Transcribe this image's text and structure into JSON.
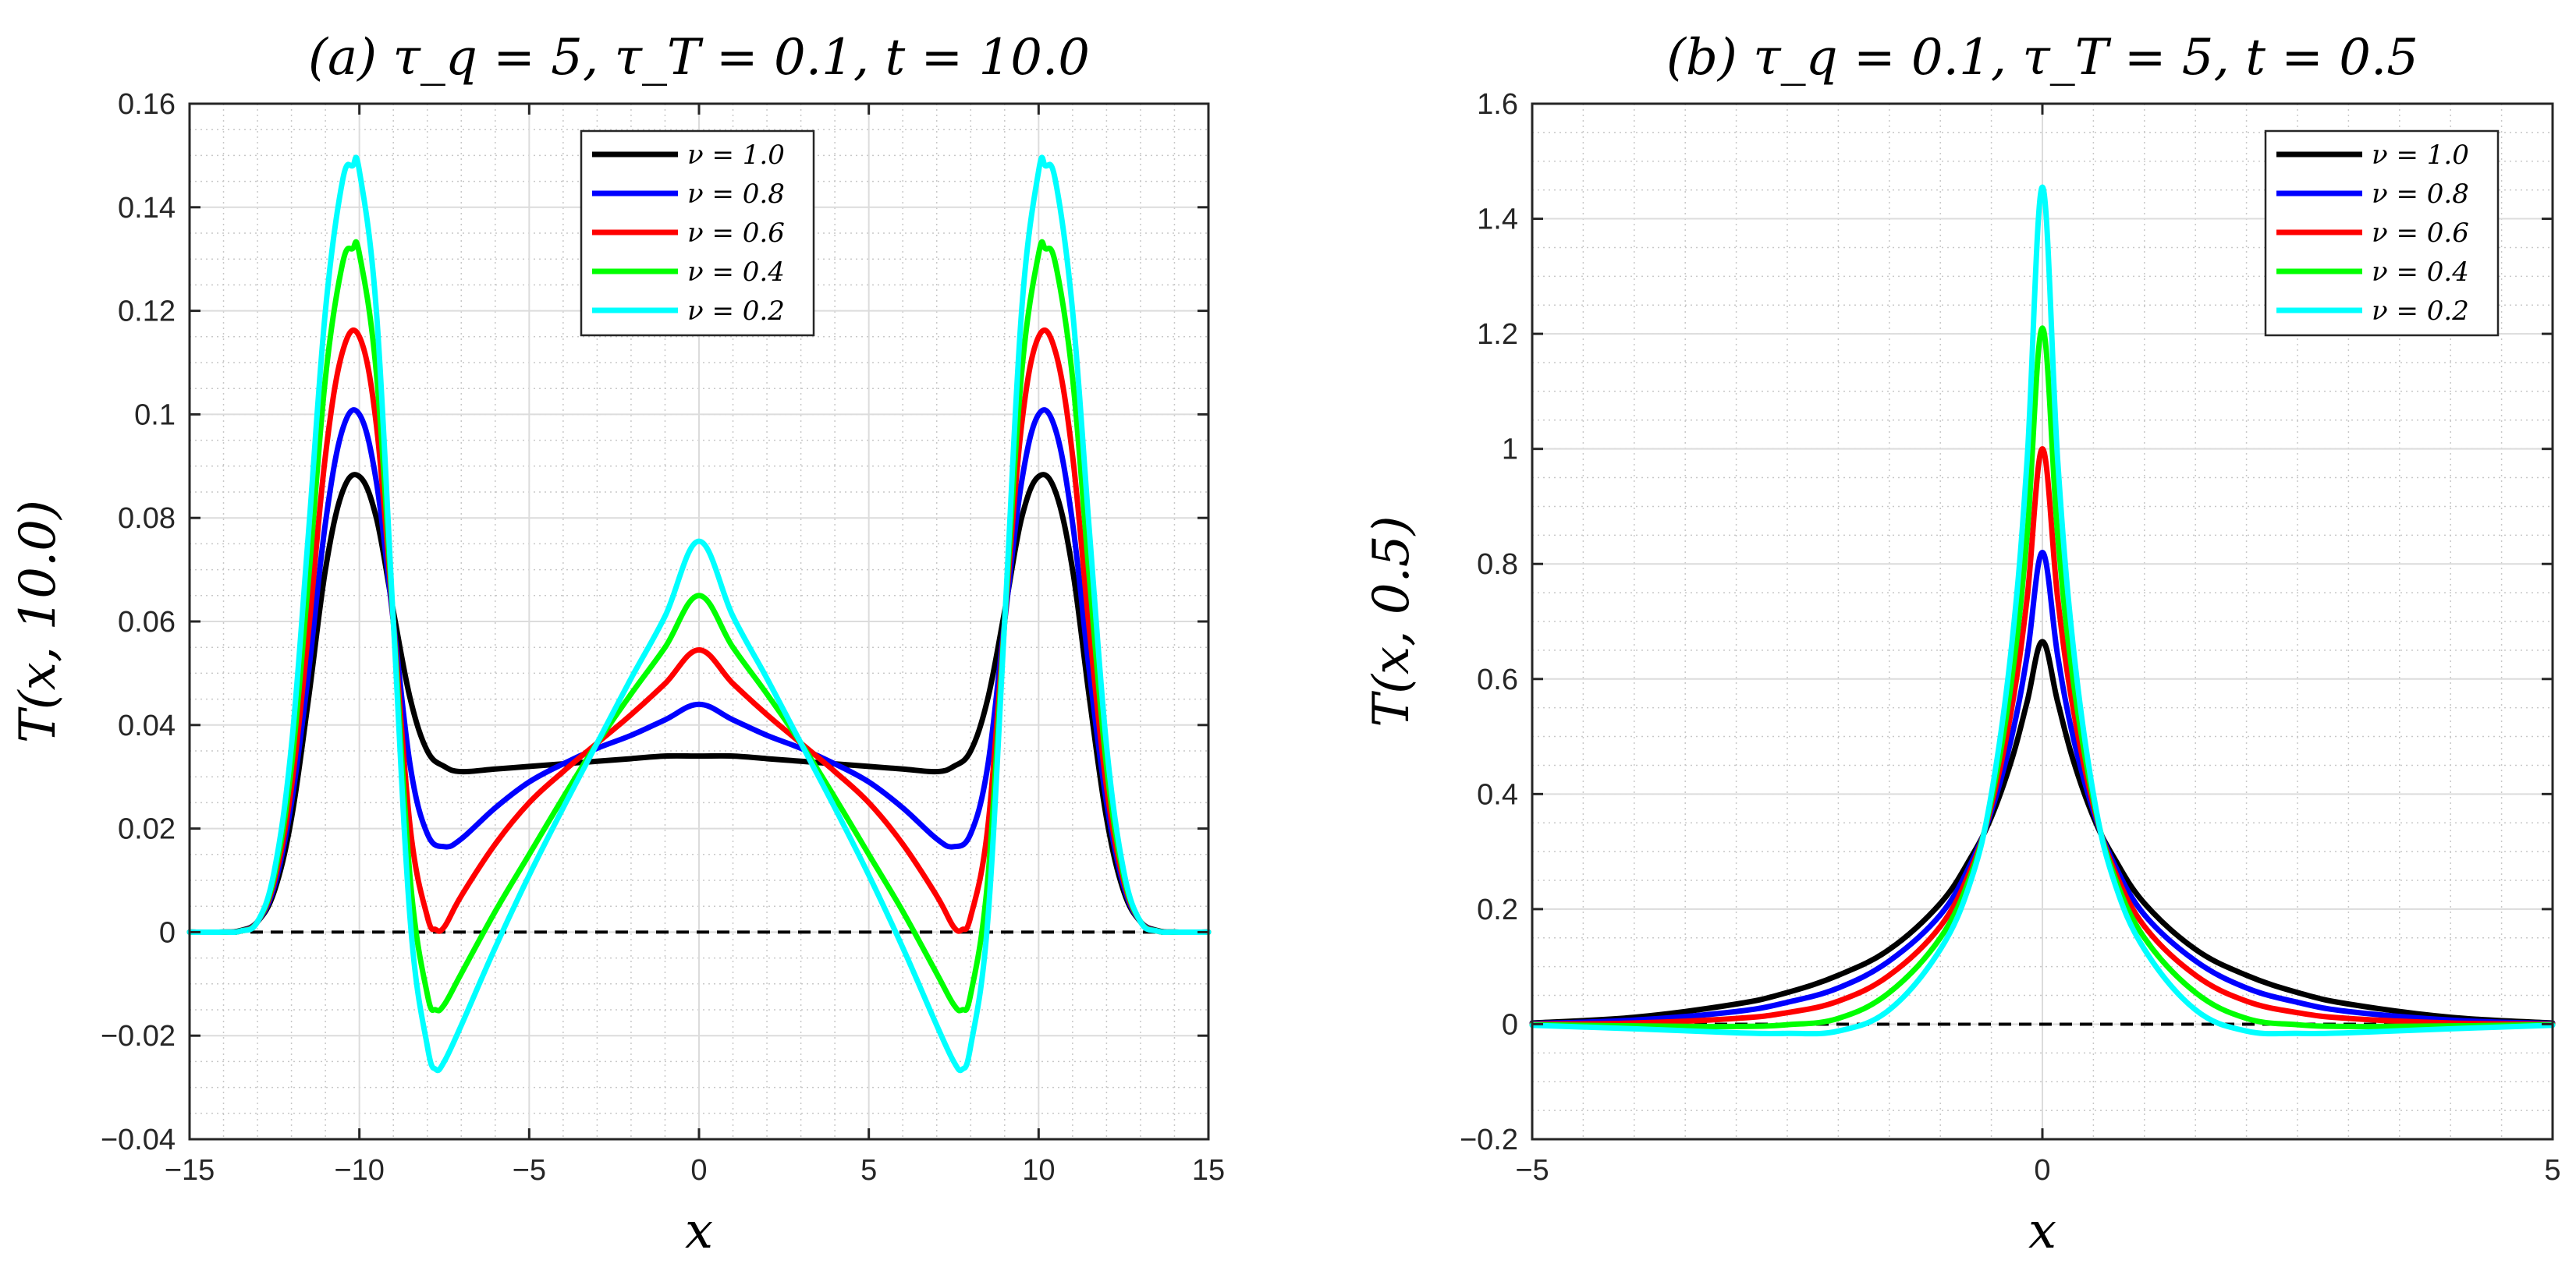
{
  "chart_data": [
    {
      "type": "line",
      "title": "(a) τ_q = 5,  τ_T = 0.1,  t = 10.0",
      "xlabel": "x",
      "ylabel": "T(x, 10.0)",
      "xlim": [
        -15,
        15
      ],
      "ylim": [
        -0.04,
        0.16
      ],
      "xticks": [
        -15,
        -10,
        -5,
        0,
        5,
        10,
        15
      ],
      "xtick_labels": [
        "−15",
        "−10",
        "−5",
        "0",
        "5",
        "10",
        "15"
      ],
      "yticks": [
        -0.04,
        -0.02,
        0,
        0.02,
        0.04,
        0.06,
        0.08,
        0.1,
        0.12,
        0.14,
        0.16
      ],
      "ytick_labels": [
        "−0.04",
        "−0.02",
        "0",
        "0.02",
        "0.04",
        "0.06",
        "0.08",
        "0.1",
        "0.12",
        "0.14",
        "0.16"
      ],
      "grid": true,
      "legend_position": "top-center",
      "reference_line": {
        "y": 0,
        "style": "dashed"
      },
      "series": [
        {
          "name": "ν = 1.0",
          "color": "#000000",
          "x": [
            -15,
            -14,
            -13.5,
            -13,
            -12.5,
            -12,
            -11.5,
            -11,
            -10.5,
            -10,
            -9.5,
            -9,
            -8.5,
            -8,
            -7.5,
            -7,
            -6,
            -5,
            -4,
            -3,
            -2,
            -1,
            0,
            1,
            2,
            3,
            4,
            5,
            6,
            7,
            7.5,
            8,
            8.5,
            9,
            9.5,
            10,
            10.5,
            11,
            11.5,
            12,
            12.5,
            13,
            13.5,
            14,
            15
          ],
          "y": [
            0,
            0,
            0.0003,
            0.002,
            0.008,
            0.022,
            0.045,
            0.07,
            0.085,
            0.088,
            0.08,
            0.062,
            0.045,
            0.035,
            0.032,
            0.031,
            0.0315,
            0.032,
            0.0325,
            0.033,
            0.0335,
            0.034,
            0.034,
            0.034,
            0.0335,
            0.033,
            0.0325,
            0.032,
            0.0315,
            0.031,
            0.032,
            0.035,
            0.045,
            0.062,
            0.08,
            0.088,
            0.085,
            0.07,
            0.045,
            0.022,
            0.008,
            0.002,
            0.0003,
            0,
            0
          ]
        },
        {
          "name": "ν = 0.8",
          "color": "#0000ff",
          "x": [
            -15,
            -14,
            -13.5,
            -13,
            -12.5,
            -12,
            -11.5,
            -11,
            -10.5,
            -10,
            -9.5,
            -9,
            -8.5,
            -8,
            -7.5,
            -7,
            -6,
            -5,
            -4,
            -3,
            -2,
            -1,
            0,
            1,
            2,
            3,
            4,
            5,
            6,
            7,
            7.5,
            8,
            8.5,
            9,
            9.5,
            10,
            10.5,
            11,
            11.5,
            12,
            12.5,
            13,
            13.5,
            14,
            15
          ],
          "y": [
            0,
            0,
            0.0002,
            0.002,
            0.009,
            0.025,
            0.05,
            0.079,
            0.097,
            0.1,
            0.087,
            0.06,
            0.032,
            0.019,
            0.0165,
            0.018,
            0.024,
            0.029,
            0.0325,
            0.0355,
            0.038,
            0.041,
            0.044,
            0.041,
            0.038,
            0.0355,
            0.0325,
            0.029,
            0.024,
            0.018,
            0.0165,
            0.019,
            0.032,
            0.06,
            0.087,
            0.1,
            0.097,
            0.079,
            0.05,
            0.025,
            0.009,
            0.002,
            0.0002,
            0,
            0
          ]
        },
        {
          "name": "ν = 0.6",
          "color": "#ff0000",
          "x": [
            -15,
            -14,
            -13.5,
            -13,
            -12.5,
            -12,
            -11.5,
            -11,
            -10.5,
            -10,
            -9.5,
            -9,
            -8.5,
            -8,
            -7.75,
            -7.5,
            -7,
            -6,
            -5,
            -4,
            -3,
            -2,
            -1,
            0,
            1,
            2,
            3,
            4,
            5,
            6,
            7,
            7.5,
            7.75,
            8,
            8.5,
            9,
            9.5,
            10,
            10.5,
            11,
            11.5,
            12,
            12.5,
            13,
            13.5,
            14,
            15
          ],
          "y": [
            0,
            0,
            0.0002,
            0.002,
            0.01,
            0.028,
            0.058,
            0.092,
            0.112,
            0.115,
            0.098,
            0.06,
            0.02,
            0.003,
            0.0005,
            0.001,
            0.007,
            0.017,
            0.025,
            0.031,
            0.0365,
            0.042,
            0.048,
            0.0545,
            0.048,
            0.042,
            0.0365,
            0.031,
            0.025,
            0.017,
            0.007,
            0.001,
            0.0005,
            0.003,
            0.02,
            0.06,
            0.098,
            0.115,
            0.112,
            0.092,
            0.058,
            0.028,
            0.01,
            0.002,
            0.0002,
            0,
            0
          ]
        },
        {
          "name": "ν = 0.4",
          "color": "#00ff00",
          "x": [
            -15,
            -14,
            -13.5,
            -13,
            -12.5,
            -12,
            -11.5,
            -11,
            -10.5,
            -10.2,
            -10,
            -9.5,
            -9,
            -8.5,
            -8,
            -7.75,
            -7.5,
            -7,
            -6,
            -5,
            -4,
            -3,
            -2,
            -1,
            0,
            1,
            2,
            3,
            4,
            5,
            6,
            7,
            7.5,
            7.75,
            8,
            8.5,
            9,
            9.5,
            10,
            10.2,
            10.5,
            11,
            11.5,
            12,
            12.5,
            13,
            13.5,
            14,
            15
          ],
          "y": [
            0,
            0,
            0.0002,
            0.002,
            0.011,
            0.032,
            0.068,
            0.107,
            0.129,
            0.132,
            0.131,
            0.108,
            0.06,
            0.01,
            -0.012,
            -0.015,
            -0.014,
            -0.008,
            0.004,
            0.015,
            0.026,
            0.0365,
            0.046,
            0.055,
            0.065,
            0.055,
            0.046,
            0.0365,
            0.026,
            0.015,
            0.004,
            -0.008,
            -0.014,
            -0.015,
            -0.012,
            0.01,
            0.06,
            0.108,
            0.131,
            0.132,
            0.129,
            0.107,
            0.068,
            0.032,
            0.011,
            0.002,
            0.0002,
            0,
            0
          ]
        },
        {
          "name": "ν = 0.2",
          "color": "#00ffff",
          "x": [
            -15,
            -14,
            -13.5,
            -13,
            -12.5,
            -12,
            -11.5,
            -11,
            -10.5,
            -10.2,
            -10,
            -9.5,
            -9,
            -8.5,
            -8,
            -7.75,
            -7.5,
            -7,
            -6,
            -5,
            -4,
            -3,
            -2,
            -1,
            0,
            1,
            2,
            3,
            4,
            5,
            6,
            7,
            7.5,
            7.75,
            8,
            8.5,
            9,
            9.5,
            10,
            10.2,
            10.5,
            11,
            11.5,
            12,
            12.5,
            13,
            13.5,
            14,
            15
          ],
          "y": [
            0,
            0,
            0.0002,
            0.002,
            0.012,
            0.036,
            0.077,
            0.12,
            0.145,
            0.148,
            0.147,
            0.12,
            0.06,
            0.002,
            -0.022,
            -0.0265,
            -0.025,
            -0.018,
            -0.003,
            0.011,
            0.024,
            0.0365,
            0.049,
            0.061,
            0.0755,
            0.061,
            0.049,
            0.0365,
            0.024,
            0.011,
            -0.003,
            -0.018,
            -0.025,
            -0.0265,
            -0.022,
            0.002,
            0.06,
            0.12,
            0.147,
            0.148,
            0.145,
            0.12,
            0.077,
            0.036,
            0.012,
            0.002,
            0.0002,
            0,
            0
          ]
        }
      ]
    },
    {
      "type": "line",
      "title": "(b) τ_q = 0.1,  τ_T = 5,  t = 0.5",
      "xlabel": "x",
      "ylabel": "T(x, 0.5)",
      "xlim": [
        -5,
        5
      ],
      "ylim": [
        -0.2,
        1.6
      ],
      "xticks": [
        -5,
        0,
        5
      ],
      "xtick_labels": [
        "−5",
        "0",
        "5"
      ],
      "yticks": [
        -0.2,
        0,
        0.2,
        0.4,
        0.6,
        0.8,
        1,
        1.2,
        1.4,
        1.6
      ],
      "ytick_labels": [
        "−0.2",
        "0",
        "0.2",
        "0.4",
        "0.6",
        "0.8",
        "1",
        "1.2",
        "1.4",
        "1.6"
      ],
      "grid": true,
      "legend_position": "top-right",
      "reference_line": {
        "y": 0,
        "style": "dashed"
      },
      "series": [
        {
          "name": "ν = 1.0",
          "color": "#000000",
          "x": [
            -5,
            -4,
            -3,
            -2.5,
            -2,
            -1.5,
            -1,
            -0.7,
            -0.5,
            -0.3,
            -0.15,
            0,
            0.15,
            0.3,
            0.5,
            0.7,
            1,
            1.5,
            2,
            2.5,
            3,
            4,
            5
          ],
          "y": [
            0.002,
            0.012,
            0.035,
            0.055,
            0.085,
            0.13,
            0.21,
            0.29,
            0.36,
            0.46,
            0.56,
            0.665,
            0.56,
            0.46,
            0.36,
            0.29,
            0.21,
            0.13,
            0.085,
            0.055,
            0.035,
            0.012,
            0.002
          ]
        },
        {
          "name": "ν = 0.8",
          "color": "#0000ff",
          "x": [
            -5,
            -4,
            -3,
            -2.5,
            -2,
            -1.5,
            -1,
            -0.7,
            -0.5,
            -0.3,
            -0.15,
            0,
            0.15,
            0.3,
            0.5,
            0.7,
            1,
            1.5,
            2,
            2.5,
            3,
            4,
            5
          ],
          "y": [
            0.001,
            0.007,
            0.022,
            0.038,
            0.063,
            0.11,
            0.19,
            0.28,
            0.37,
            0.5,
            0.64,
            0.82,
            0.64,
            0.5,
            0.37,
            0.28,
            0.19,
            0.11,
            0.063,
            0.038,
            0.022,
            0.007,
            0.001
          ]
        },
        {
          "name": "ν = 0.6",
          "color": "#ff0000",
          "x": [
            -5,
            -4,
            -3,
            -2.5,
            -2,
            -1.5,
            -1,
            -0.7,
            -0.5,
            -0.3,
            -0.15,
            0,
            0.15,
            0.3,
            0.5,
            0.7,
            1,
            1.5,
            2,
            2.5,
            3,
            4,
            5
          ],
          "y": [
            0,
            0.002,
            0.01,
            0.02,
            0.04,
            0.085,
            0.17,
            0.27,
            0.38,
            0.55,
            0.74,
            1.0,
            0.74,
            0.55,
            0.38,
            0.27,
            0.17,
            0.085,
            0.04,
            0.02,
            0.01,
            0.002,
            0
          ]
        },
        {
          "name": "ν = 0.4",
          "color": "#00ff00",
          "x": [
            -5,
            -4,
            -3,
            -2.5,
            -2,
            -1.5,
            -1,
            -0.7,
            -0.5,
            -0.3,
            -0.15,
            0,
            0.15,
            0.3,
            0.5,
            0.7,
            1,
            1.5,
            2,
            2.5,
            3,
            4,
            5
          ],
          "y": [
            -0.001,
            -0.003,
            -0.004,
            -0.001,
            0.01,
            0.055,
            0.15,
            0.26,
            0.39,
            0.6,
            0.85,
            1.21,
            0.85,
            0.6,
            0.39,
            0.26,
            0.15,
            0.055,
            0.01,
            -0.001,
            -0.004,
            -0.003,
            -0.001
          ]
        },
        {
          "name": "ν = 0.2",
          "color": "#00ffff",
          "x": [
            -5,
            -4,
            -3,
            -2.5,
            -2,
            -1.5,
            -1,
            -0.7,
            -0.5,
            -0.3,
            -0.15,
            0,
            0.15,
            0.3,
            0.5,
            0.7,
            1,
            1.5,
            2,
            2.5,
            3,
            4,
            5
          ],
          "y": [
            -0.002,
            -0.008,
            -0.015,
            -0.016,
            -0.012,
            0.025,
            0.13,
            0.25,
            0.4,
            0.66,
            0.98,
            1.455,
            0.98,
            0.66,
            0.4,
            0.25,
            0.13,
            0.025,
            -0.012,
            -0.016,
            -0.015,
            -0.008,
            -0.002
          ]
        }
      ]
    }
  ]
}
